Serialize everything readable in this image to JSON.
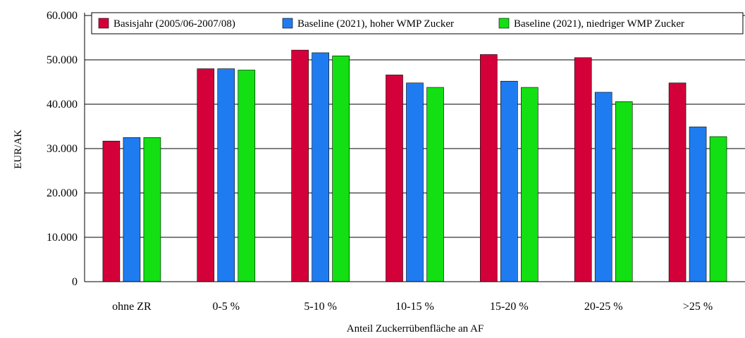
{
  "chart_data": {
    "type": "bar",
    "title": "",
    "xlabel": "Anteil Zuckerrübenfläche an AF",
    "ylabel": "EUR/AK",
    "ylim": [
      0,
      60000
    ],
    "yticks": [
      {
        "value": 0,
        "label": "0"
      },
      {
        "value": 10000,
        "label": "10.000"
      },
      {
        "value": 20000,
        "label": "20.000"
      },
      {
        "value": 30000,
        "label": "30.000"
      },
      {
        "value": 40000,
        "label": "40.000"
      },
      {
        "value": 50000,
        "label": "50.000"
      },
      {
        "value": 60000,
        "label": "60.000"
      }
    ],
    "grid": true,
    "legend_position": "top",
    "categories": [
      "ohne ZR",
      "0-5 %",
      "5-10 %",
      "10-15 %",
      "15-20 %",
      "20-25 %",
      ">25 %"
    ],
    "series": [
      {
        "name": "Basisjahr (2005/06-2007/08)",
        "color": "#d4003a",
        "values": [
          31700,
          48000,
          52200,
          46600,
          51200,
          50500,
          44800
        ]
      },
      {
        "name": "Baseline (2021), hoher WMP Zucker",
        "color": "#1f7cf0",
        "values": [
          32500,
          48000,
          51600,
          44800,
          45200,
          42700,
          34900
        ]
      },
      {
        "name": "Baseline (2021), niedriger WMP Zucker",
        "color": "#12e012",
        "values": [
          32500,
          47700,
          50900,
          43800,
          43800,
          40600,
          32700
        ]
      }
    ]
  }
}
